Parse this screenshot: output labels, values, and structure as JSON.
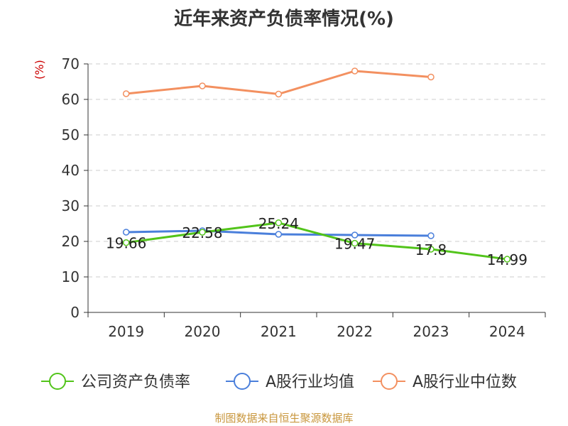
{
  "chart_data": {
    "type": "line",
    "title": "近年来资产负债率情况(%)",
    "ylabel": "(%)",
    "xlabel": "",
    "ylim": [
      0,
      70
    ],
    "yticks": [
      0,
      10,
      20,
      30,
      40,
      50,
      60,
      70
    ],
    "categories": [
      "2019",
      "2020",
      "2021",
      "2022",
      "2023",
      "2024"
    ],
    "grid": true,
    "legend_position": "bottom",
    "series": [
      {
        "name": "公司资产负债率",
        "color": "#52c41a",
        "values": [
          19.66,
          22.58,
          25.24,
          19.47,
          17.8,
          14.99
        ],
        "labels": [
          "19.66",
          "22.58",
          "25.24",
          "19.47",
          "17.8",
          "14.99"
        ]
      },
      {
        "name": "A股行业均值",
        "color": "#4a7fdb",
        "values": [
          22.6,
          23.0,
          22.0,
          21.8,
          21.6,
          null
        ]
      },
      {
        "name": "A股行业中位数",
        "color": "#f39060",
        "values": [
          61.6,
          63.8,
          61.5,
          68.0,
          66.3,
          null
        ]
      }
    ]
  },
  "footer": {
    "source": "制图数据来自恒生聚源数据库"
  }
}
